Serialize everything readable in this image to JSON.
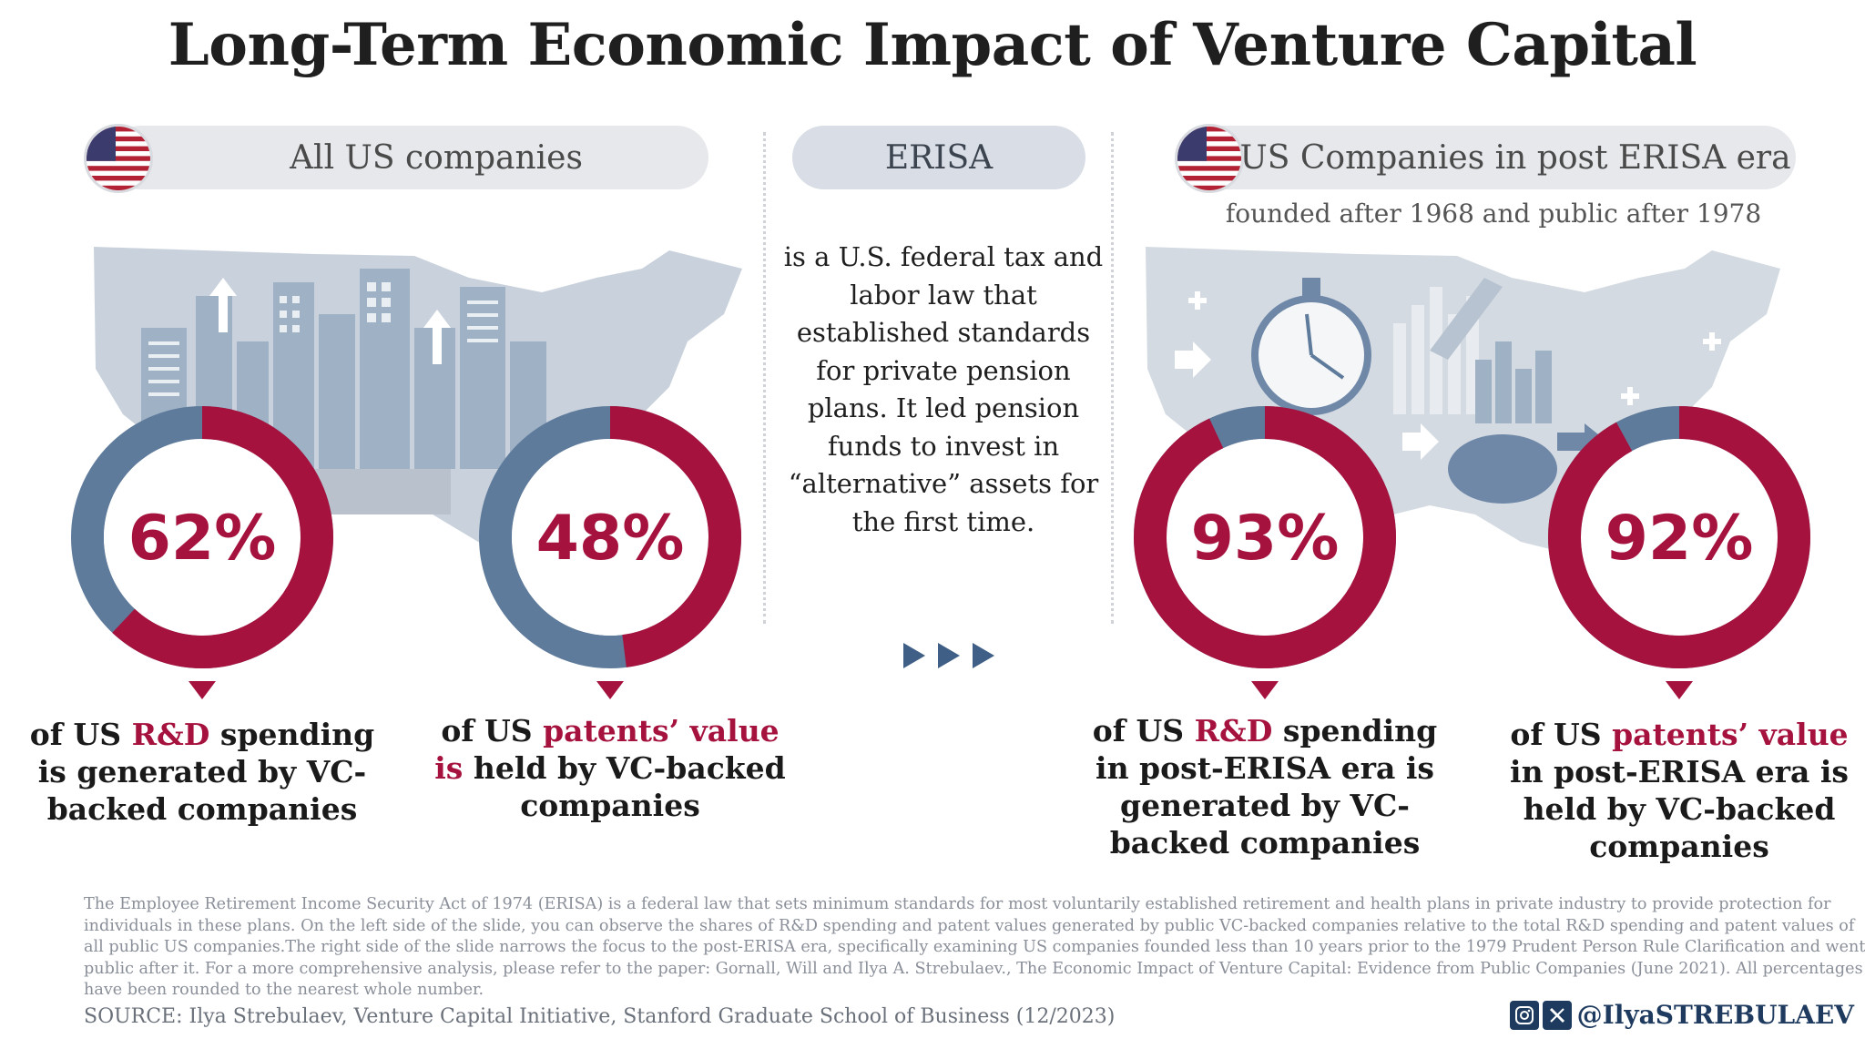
{
  "title": "Long-Term Economic Impact of Venture Capital",
  "left_section": {
    "label": "All US companies",
    "icon": "us-flag-icon"
  },
  "middle_section": {
    "label": "ERISA",
    "description": "is a U.S. federal tax and labor law that established standards for private pension plans. It led pension funds to invest in “alternative” assets for the first time."
  },
  "right_section": {
    "label": "US Companies in post ERISA era",
    "subtitle": "founded after 1968 and public after 1978",
    "icon": "us-flag-icon"
  },
  "colors": {
    "accent": "#a6123e",
    "secondary": "#5f7b9b",
    "pill": "#e6e8eb",
    "map": "#c3ccd6"
  },
  "chart_data": [
    {
      "type": "pie",
      "group": "All US companies",
      "value": 62,
      "label": "62%",
      "caption": [
        {
          "t": "of US "
        },
        {
          "t": "R&D",
          "hl": true
        },
        {
          "t": " spending is generated by VC-backed companies"
        }
      ]
    },
    {
      "type": "pie",
      "group": "All US companies",
      "value": 48,
      "label": "48%",
      "caption": [
        {
          "t": "of US "
        },
        {
          "t": "patents’ value is",
          "hl": true
        },
        {
          "t": " held by VC-backed companies"
        }
      ]
    },
    {
      "type": "pie",
      "group": "US Companies in post ERISA era",
      "value": 93,
      "label": "93%",
      "caption": [
        {
          "t": "of US "
        },
        {
          "t": "R&D",
          "hl": true
        },
        {
          "t": " spending in post-ERISA era is generated by VC-backed companies"
        }
      ]
    },
    {
      "type": "pie",
      "group": "US Companies in post ERISA era",
      "value": 92,
      "label": "92%",
      "caption": [
        {
          "t": "of US "
        },
        {
          "t": "patents’ value",
          "hl": true
        },
        {
          "t": " in post-ERISA era is held by VC-backed companies"
        }
      ]
    }
  ],
  "footnote": "The Employee Retirement Income Security Act of 1974 (ERISA) is a federal law that sets minimum standards for most voluntarily established retirement and health plans in private industry to provide protection for individuals in these plans. On the left side of the slide, you can observe the shares of R&D spending and patent values generated by public VC-backed companies relative to the total R&D spending and patent values of all public US companies.The right side of the slide narrows the focus to the post-ERISA era, specifically examining US companies founded less than 10 years prior to the 1979 Prudent Person Rule Clarification and went public after it. For a more comprehensive analysis, please refer to the paper: Gornall, Will and Ilya A. Strebulaev., The Economic Impact of Venture Capital: Evidence from Public Companies (June 2021). All percentages have been rounded to the nearest whole number.",
  "source": "SOURCE: Ilya Strebulaev, Venture Capital Initiative, Stanford Graduate School of Business (12/2023)",
  "social": {
    "handle": "@IlyaSTREBULAEV",
    "icons": [
      "instagram-icon",
      "x-icon"
    ]
  }
}
